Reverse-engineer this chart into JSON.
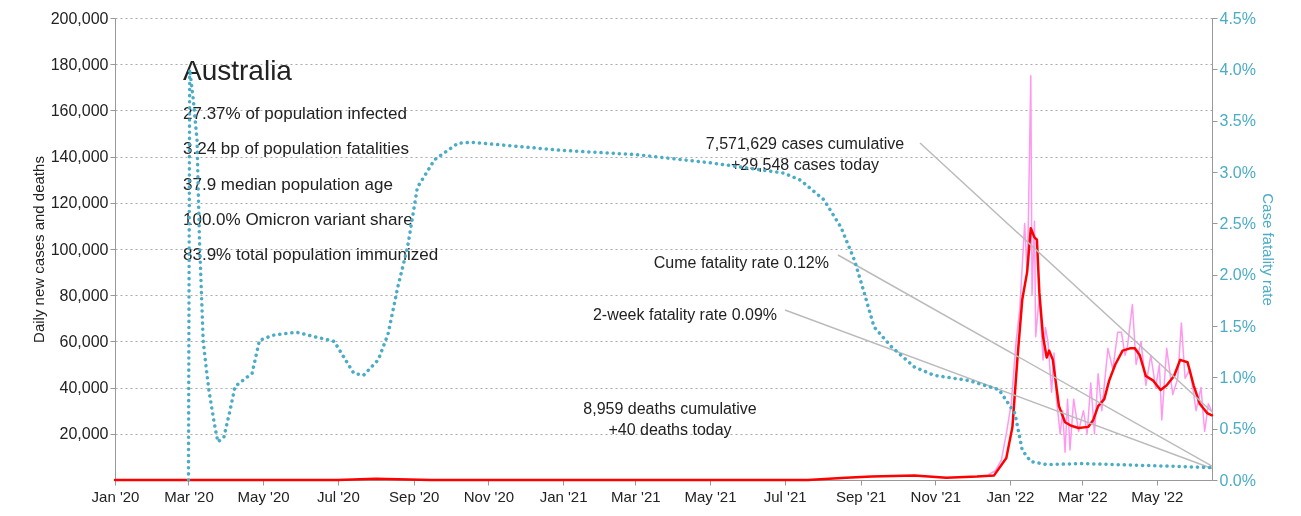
{
  "chart_data": {
    "type": "line",
    "title": "Australia",
    "ylabel": "Daily new cases and deaths",
    "y2label": "Case fatality rate",
    "xlim": [
      "2020-01-01",
      "2022-06-15"
    ],
    "xticks": [
      {
        "value": "2020-01",
        "label": "Jan '20"
      },
      {
        "value": "2020-03",
        "label": "Mar '20"
      },
      {
        "value": "2020-05",
        "label": "May '20"
      },
      {
        "value": "2020-07",
        "label": "Jul '20"
      },
      {
        "value": "2020-09",
        "label": "Sep '20"
      },
      {
        "value": "2020-11",
        "label": "Nov '20"
      },
      {
        "value": "2021-01",
        "label": "Jan '21"
      },
      {
        "value": "2021-03",
        "label": "Mar '21"
      },
      {
        "value": "2021-05",
        "label": "May '21"
      },
      {
        "value": "2021-07",
        "label": "Jul '21"
      },
      {
        "value": "2021-09",
        "label": "Sep '21"
      },
      {
        "value": "2021-11",
        "label": "Nov '21"
      },
      {
        "value": "2022-01",
        "label": "Jan '22"
      },
      {
        "value": "2022-03",
        "label": "Mar '22"
      },
      {
        "value": "2022-05",
        "label": "May '22"
      }
    ],
    "ylim": [
      0,
      200000
    ],
    "yticks": [
      {
        "value": 20000,
        "label": "20,000"
      },
      {
        "value": 40000,
        "label": "40,000"
      },
      {
        "value": 60000,
        "label": "60,000"
      },
      {
        "value": 80000,
        "label": "80,000"
      },
      {
        "value": 100000,
        "label": "100,000"
      },
      {
        "value": 120000,
        "label": "120,000"
      },
      {
        "value": 140000,
        "label": "140,000"
      },
      {
        "value": 160000,
        "label": "160,000"
      },
      {
        "value": 180000,
        "label": "180,000"
      },
      {
        "value": 200000,
        "label": "200,000"
      }
    ],
    "y2lim": [
      0,
      4.5
    ],
    "y2ticks": [
      {
        "value": 0,
        "label": "0.0%"
      },
      {
        "value": 0.5,
        "label": "0.5%"
      },
      {
        "value": 1,
        "label": "1.0%"
      },
      {
        "value": 1.5,
        "label": "1.5%"
      },
      {
        "value": 2,
        "label": "2.0%"
      },
      {
        "value": 2.5,
        "label": "2.5%"
      },
      {
        "value": 3,
        "label": "3.0%"
      },
      {
        "value": 3.5,
        "label": "3.5%"
      },
      {
        "value": 4,
        "label": "4.0%"
      },
      {
        "value": 4.5,
        "label": "4.5%"
      }
    ],
    "grid": "y",
    "series": [
      {
        "color": "#ff99ee",
        "line_style": "solid",
        "x": [
          "2021-12-15",
          "2021-12-20",
          "2021-12-25",
          "2021-12-29",
          "2022-01-02",
          "2022-01-06",
          "2022-01-09",
          "2022-01-13",
          "2022-01-15",
          "2022-01-16",
          "2022-01-18",
          "2022-01-19",
          "2022-01-21",
          "2022-01-22",
          "2022-01-25",
          "2022-01-28",
          "2022-01-30",
          "2022-02-01",
          "2022-02-04",
          "2022-02-06",
          "2022-02-08",
          "2022-02-11",
          "2022-02-13",
          "2022-02-15",
          "2022-02-17",
          "2022-02-19",
          "2022-02-22",
          "2022-02-26",
          "2022-03-02",
          "2022-03-05",
          "2022-03-08",
          "2022-03-11",
          "2022-03-14",
          "2022-03-17",
          "2022-03-22",
          "2022-03-26",
          "2022-03-30",
          "2022-04-02",
          "2022-04-05",
          "2022-04-07",
          "2022-04-11",
          "2022-04-14",
          "2022-04-18",
          "2022-04-22",
          "2022-04-26",
          "2022-04-30",
          "2022-05-03",
          "2022-05-05",
          "2022-05-09",
          "2022-05-14",
          "2022-05-18",
          "2022-05-21",
          "2022-05-24",
          "2022-05-28",
          "2022-06-02",
          "2022-06-06",
          "2022-06-09",
          "2022-06-12",
          "2022-06-15"
        ],
        "values": [
          2500,
          4000,
          8700,
          20000,
          33000,
          60000,
          74000,
          111000,
          90000,
          112000,
          175000,
          80000,
          112000,
          62000,
          80000,
          52000,
          66000,
          60000,
          38000,
          55000,
          35000,
          20000,
          30000,
          12000,
          35000,
          13000,
          35000,
          21000,
          30000,
          20000,
          42000,
          20000,
          46000,
          30000,
          57000,
          48000,
          64000,
          64000,
          54000,
          58000,
          76000,
          50000,
          60000,
          41000,
          54000,
          40000,
          50000,
          26000,
          57000,
          37000,
          44000,
          68000,
          44000,
          48000,
          30000,
          40000,
          21000,
          33000,
          29548
        ]
      },
      {
        "color": "#ff0000",
        "line_style": "solid",
        "x": [
          "2020-01-01",
          "2020-03-25",
          "2020-05-01",
          "2020-07-01",
          "2020-08-01",
          "2020-09-15",
          "2021-01-01",
          "2021-06-15",
          "2021-07-20",
          "2021-08-20",
          "2021-09-10",
          "2021-10-15",
          "2021-11-10",
          "2021-12-05",
          "2021-12-19",
          "2021-12-29",
          "2022-01-03",
          "2022-01-07",
          "2022-01-11",
          "2022-01-15",
          "2022-01-18",
          "2022-01-21",
          "2022-01-23",
          "2022-01-25",
          "2022-01-28",
          "2022-01-31",
          "2022-02-02",
          "2022-02-05",
          "2022-02-10",
          "2022-02-15",
          "2022-02-20",
          "2022-02-26",
          "2022-03-06",
          "2022-03-10",
          "2022-03-14",
          "2022-03-19",
          "2022-03-23",
          "2022-03-28",
          "2022-04-03",
          "2022-04-09",
          "2022-04-13",
          "2022-04-17",
          "2022-04-22",
          "2022-04-28",
          "2022-05-04",
          "2022-05-09",
          "2022-05-15",
          "2022-05-20",
          "2022-05-26",
          "2022-05-31",
          "2022-06-05",
          "2022-06-11",
          "2022-06-15"
        ],
        "values": [
          0,
          0,
          0,
          0,
          500,
          0,
          0,
          0,
          0,
          1000,
          1500,
          2000,
          1000,
          1500,
          2000,
          9500,
          23000,
          52000,
          78000,
          90000,
          109000,
          105000,
          104000,
          81000,
          62000,
          53000,
          56000,
          52000,
          32000,
          25000,
          23500,
          22500,
          23000,
          26000,
          32000,
          35000,
          43000,
          50000,
          56000,
          57000,
          57000,
          54000,
          45000,
          43000,
          39000,
          41000,
          45000,
          52000,
          51000,
          41000,
          33000,
          29000,
          28000
        ]
      },
      {
        "color": "#4bacc6",
        "line_style": "dotted",
        "axis": "y2",
        "x": [
          "2020-03-01",
          "2020-03-02",
          "2020-03-05",
          "2020-03-08",
          "2020-03-10",
          "2020-03-13",
          "2020-03-16",
          "2020-03-18",
          "2020-03-22",
          "2020-03-25",
          "2020-03-30",
          "2020-04-04",
          "2020-04-08",
          "2020-04-22",
          "2020-04-28",
          "2020-05-09",
          "2020-05-28",
          "2020-06-14",
          "2020-06-28",
          "2020-07-14",
          "2020-07-22",
          "2020-08-03",
          "2020-08-11",
          "2020-08-19",
          "2020-08-27",
          "2020-09-04",
          "2020-09-18",
          "2020-10-07",
          "2020-10-18",
          "2021-01-01",
          "2021-03-01",
          "2021-05-01",
          "2021-06-30",
          "2021-07-14",
          "2021-08-02",
          "2021-08-16",
          "2021-08-27",
          "2021-09-04",
          "2021-09-12",
          "2021-09-26",
          "2021-10-15",
          "2021-10-31",
          "2021-11-28",
          "2021-12-23",
          "2022-01-05",
          "2022-01-11",
          "2022-01-18",
          "2022-01-31",
          "2022-03-01",
          "2022-03-29",
          "2022-04-26",
          "2022-05-24",
          "2022-06-15"
        ],
        "values": [
          0,
          4.0,
          3.7,
          3.31,
          2.34,
          1.36,
          1.04,
          0.85,
          0.56,
          0.37,
          0.42,
          0.68,
          0.91,
          1.04,
          1.36,
          1.41,
          1.44,
          1.39,
          1.35,
          1.04,
          1.02,
          1.17,
          1.42,
          1.88,
          2.27,
          2.85,
          3.12,
          3.28,
          3.29,
          3.21,
          3.17,
          3.09,
          2.99,
          2.92,
          2.73,
          2.46,
          2.14,
          1.82,
          1.49,
          1.3,
          1.1,
          1.02,
          0.97,
          0.88,
          0.65,
          0.29,
          0.18,
          0.15,
          0.16,
          0.15,
          0.14,
          0.13,
          0.12
        ]
      }
    ],
    "annotations": [
      "27.37% of population infected",
      "3.24 bp of population fatalities",
      "37.9 median population age",
      "100.0% Omicron variant share",
      "83.9% total population immunized",
      {
        "text": "7,571,629 cases cumulative\n+29,548 cases today",
        "x": "2022-06-15",
        "y": 29548
      },
      {
        "text": "Cume fatality rate 0.12%",
        "x": "2022-06-15",
        "y": 6000
      },
      {
        "text": "2-week fatality rate 0.09%",
        "x": "2022-06-15",
        "y": 5000
      },
      "8,959 deaths cumulative\n+40 deaths today"
    ]
  }
}
